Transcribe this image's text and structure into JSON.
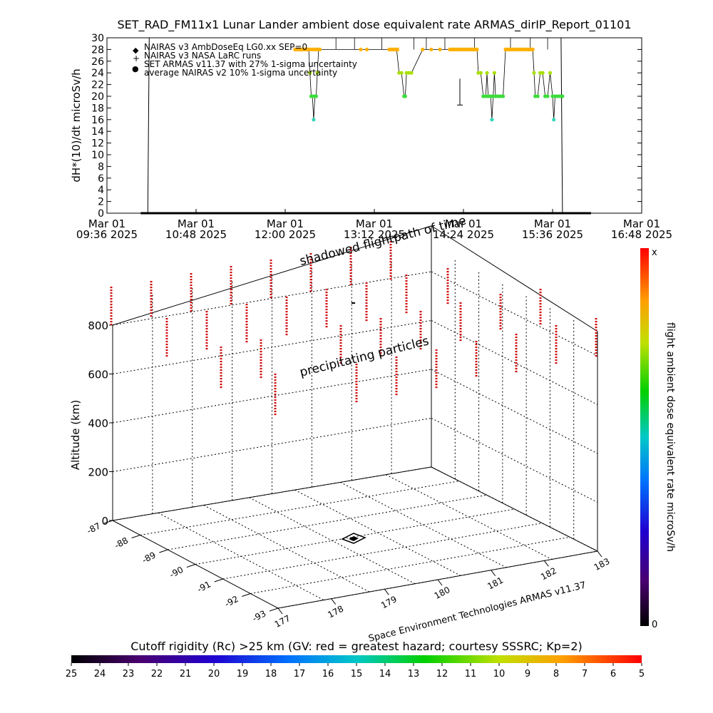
{
  "title": "SET_RAD_FM11x1  Lunar Lander ambient dose equivalent rate ARMAS_dirIP_Report_01101",
  "chart_data": [
    {
      "type": "line",
      "title": "SET_RAD_FM11x1  Lunar Lander ambient dose equivalent rate ARMAS_dirIP_Report_01101",
      "ylabel": "dH*(10)/dt microSv/h",
      "ylim": [
        0,
        30
      ],
      "yticks": [
        0,
        2,
        4,
        6,
        8,
        10,
        12,
        14,
        16,
        18,
        20,
        22,
        24,
        26,
        28,
        30
      ],
      "xticks": [
        {
          "date": "Mar 01",
          "time": "09:36 2025"
        },
        {
          "date": "Mar 01",
          "time": "10:48 2025"
        },
        {
          "date": "Mar 01",
          "time": "12:00 2025"
        },
        {
          "date": "Mar 01",
          "time": "13:12 2025"
        },
        {
          "date": "Mar 01",
          "time": "14:24 2025"
        },
        {
          "date": "Mar 01",
          "time": "15:36 2025"
        },
        {
          "date": "Mar 01",
          "time": "16:48 2025"
        }
      ],
      "legend": [
        {
          "symbol": "◆",
          "text": "NAIRAS v3 AmbDoseEq LG0.xx SEP=0"
        },
        {
          "symbol": "+",
          "text": "NAIRAS v3 NASA LaRC runs"
        },
        {
          "symbol": "●",
          "text": "SET ARMAS v11.37 with 27% 1-sigma uncertainty"
        },
        {
          "symbol": "",
          "text": "average NAIRAS v2 10% 1-sigma uncertainty"
        }
      ],
      "series_armas_color_by_value": {
        "28": "#ffb000",
        "24": "#a8e000",
        "20": "#3cdc3c",
        "16": "#30d8b8"
      },
      "series_armas_minutes_from_0936": [
        [
          152,
          28
        ],
        [
          154,
          28
        ],
        [
          155,
          28
        ],
        [
          157,
          28
        ],
        [
          158,
          28
        ],
        [
          160,
          28
        ],
        [
          161,
          28
        ],
        [
          163,
          28
        ],
        [
          164,
          24
        ],
        [
          165,
          20
        ],
        [
          166,
          20
        ],
        [
          167,
          16
        ],
        [
          168,
          20
        ],
        [
          169,
          20
        ],
        [
          170,
          24
        ],
        [
          171,
          28
        ],
        [
          172,
          28
        ],
        [
          205,
          28
        ],
        [
          210,
          28
        ],
        [
          228,
          28
        ],
        [
          230,
          28
        ],
        [
          232,
          28
        ],
        [
          234,
          28
        ],
        [
          236,
          24
        ],
        [
          238,
          24
        ],
        [
          240,
          20
        ],
        [
          241,
          20
        ],
        [
          242,
          24
        ],
        [
          244,
          24
        ],
        [
          246,
          24
        ],
        [
          255,
          28
        ],
        [
          262,
          28
        ],
        [
          269,
          28
        ],
        [
          277,
          28
        ],
        [
          279,
          28
        ],
        [
          281,
          28
        ],
        [
          283,
          28
        ],
        [
          285,
          28
        ],
        [
          287,
          28
        ],
        [
          289,
          28
        ],
        [
          291,
          28
        ],
        [
          293,
          28
        ],
        [
          295,
          28
        ],
        [
          297,
          28
        ],
        [
          299,
          28
        ],
        [
          300,
          24
        ],
        [
          302,
          24
        ],
        [
          304,
          20
        ],
        [
          306,
          20
        ],
        [
          307,
          24
        ],
        [
          308,
          20
        ],
        [
          310,
          20
        ],
        [
          311,
          16
        ],
        [
          312,
          20
        ],
        [
          313,
          24
        ],
        [
          314,
          20
        ],
        [
          316,
          20
        ],
        [
          318,
          20
        ],
        [
          320,
          20
        ],
        [
          322,
          28
        ],
        [
          324,
          28
        ],
        [
          326,
          28
        ],
        [
          328,
          28
        ],
        [
          330,
          28
        ],
        [
          332,
          28
        ],
        [
          334,
          28
        ],
        [
          336,
          28
        ],
        [
          338,
          28
        ],
        [
          340,
          28
        ],
        [
          342,
          28
        ],
        [
          344,
          28
        ],
        [
          345,
          24
        ],
        [
          346,
          20
        ],
        [
          348,
          20
        ],
        [
          350,
          24
        ],
        [
          352,
          24
        ],
        [
          354,
          20
        ],
        [
          356,
          20
        ],
        [
          358,
          24
        ],
        [
          360,
          20
        ],
        [
          361,
          16
        ],
        [
          362,
          20
        ],
        [
          364,
          20
        ],
        [
          366,
          20
        ],
        [
          368,
          20
        ]
      ],
      "series_zero_minutes_from_0936": [
        33,
        368
      ]
    },
    {
      "type": "scatter",
      "title": "",
      "annotations": [
        "shadowed flightpath of time",
        "precipitating particles",
        "Space Environment Technologies ARMAS v11.37"
      ],
      "zlabel": "Altitude (km)",
      "zlim": [
        0,
        900
      ],
      "zticks": [
        0,
        200,
        400,
        600,
        800
      ],
      "lat_ticks": [
        "-87",
        "-88",
        "-89",
        "-90",
        "-91",
        "-92",
        "-93"
      ],
      "lon_ticks": [
        "177",
        "178",
        "179",
        "180",
        "181",
        "182",
        "183"
      ],
      "colorbar": {
        "label": "flight ambient dose equivalent rate microSv/h",
        "top": "x",
        "bottom": "0"
      }
    }
  ],
  "rigidity_bar": {
    "label": "Cutoff rigidity (Rc) >25 km (GV: red = greatest hazard; courtesy SSSRC; Kp=2)",
    "ticks": [
      "25",
      "24",
      "23",
      "22",
      "21",
      "20",
      "19",
      "18",
      "17",
      "16",
      "15",
      "14",
      "13",
      "12",
      "11",
      "10",
      "9",
      "8",
      "7",
      "6",
      "5"
    ]
  }
}
